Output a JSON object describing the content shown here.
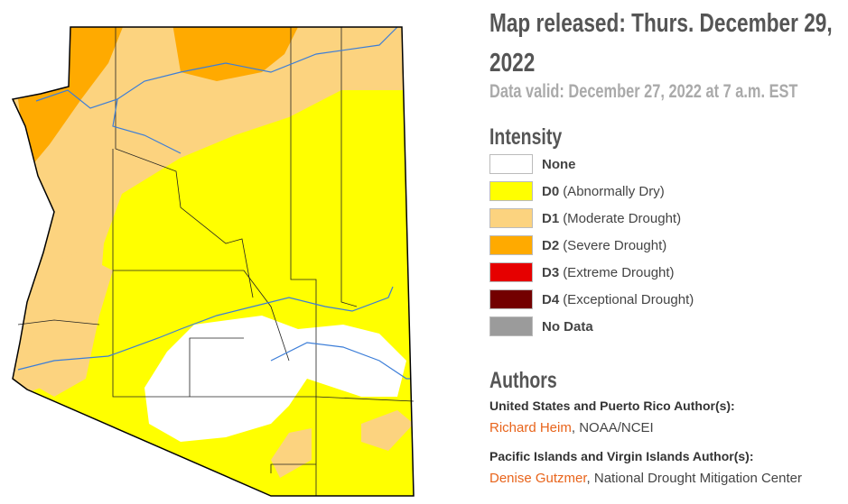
{
  "header": {
    "title": "Map released: Thurs. December 29, 2022",
    "subtitle": "Data valid: December 27, 2022 at 7 a.m. EST"
  },
  "legend": {
    "title": "Intensity",
    "items": [
      {
        "code": "None",
        "color": "#ffffff"
      },
      {
        "code": "D0",
        "description": "(Abnormally Dry)",
        "color": "#ffff00"
      },
      {
        "code": "D1",
        "description": "(Moderate Drought)",
        "color": "#fcd37f"
      },
      {
        "code": "D2",
        "description": "(Severe Drought)",
        "color": "#ffaa00"
      },
      {
        "code": "D3",
        "description": "(Extreme Drought)",
        "color": "#e60000"
      },
      {
        "code": "D4",
        "description": "(Exceptional Drought)",
        "color": "#730000"
      },
      {
        "code": "No Data",
        "color": "#9b9b9b"
      }
    ]
  },
  "authors": {
    "title": "Authors",
    "groups": [
      {
        "heading": "United States and Puerto Rico Author(s):",
        "name": "Richard Heim",
        "affiliation": ", NOAA/NCEI"
      },
      {
        "heading": "Pacific Islands and Virgin Islands Author(s):",
        "name": "Denise Gutzmer",
        "affiliation": ", National Drought Mitigation Center"
      }
    ]
  }
}
